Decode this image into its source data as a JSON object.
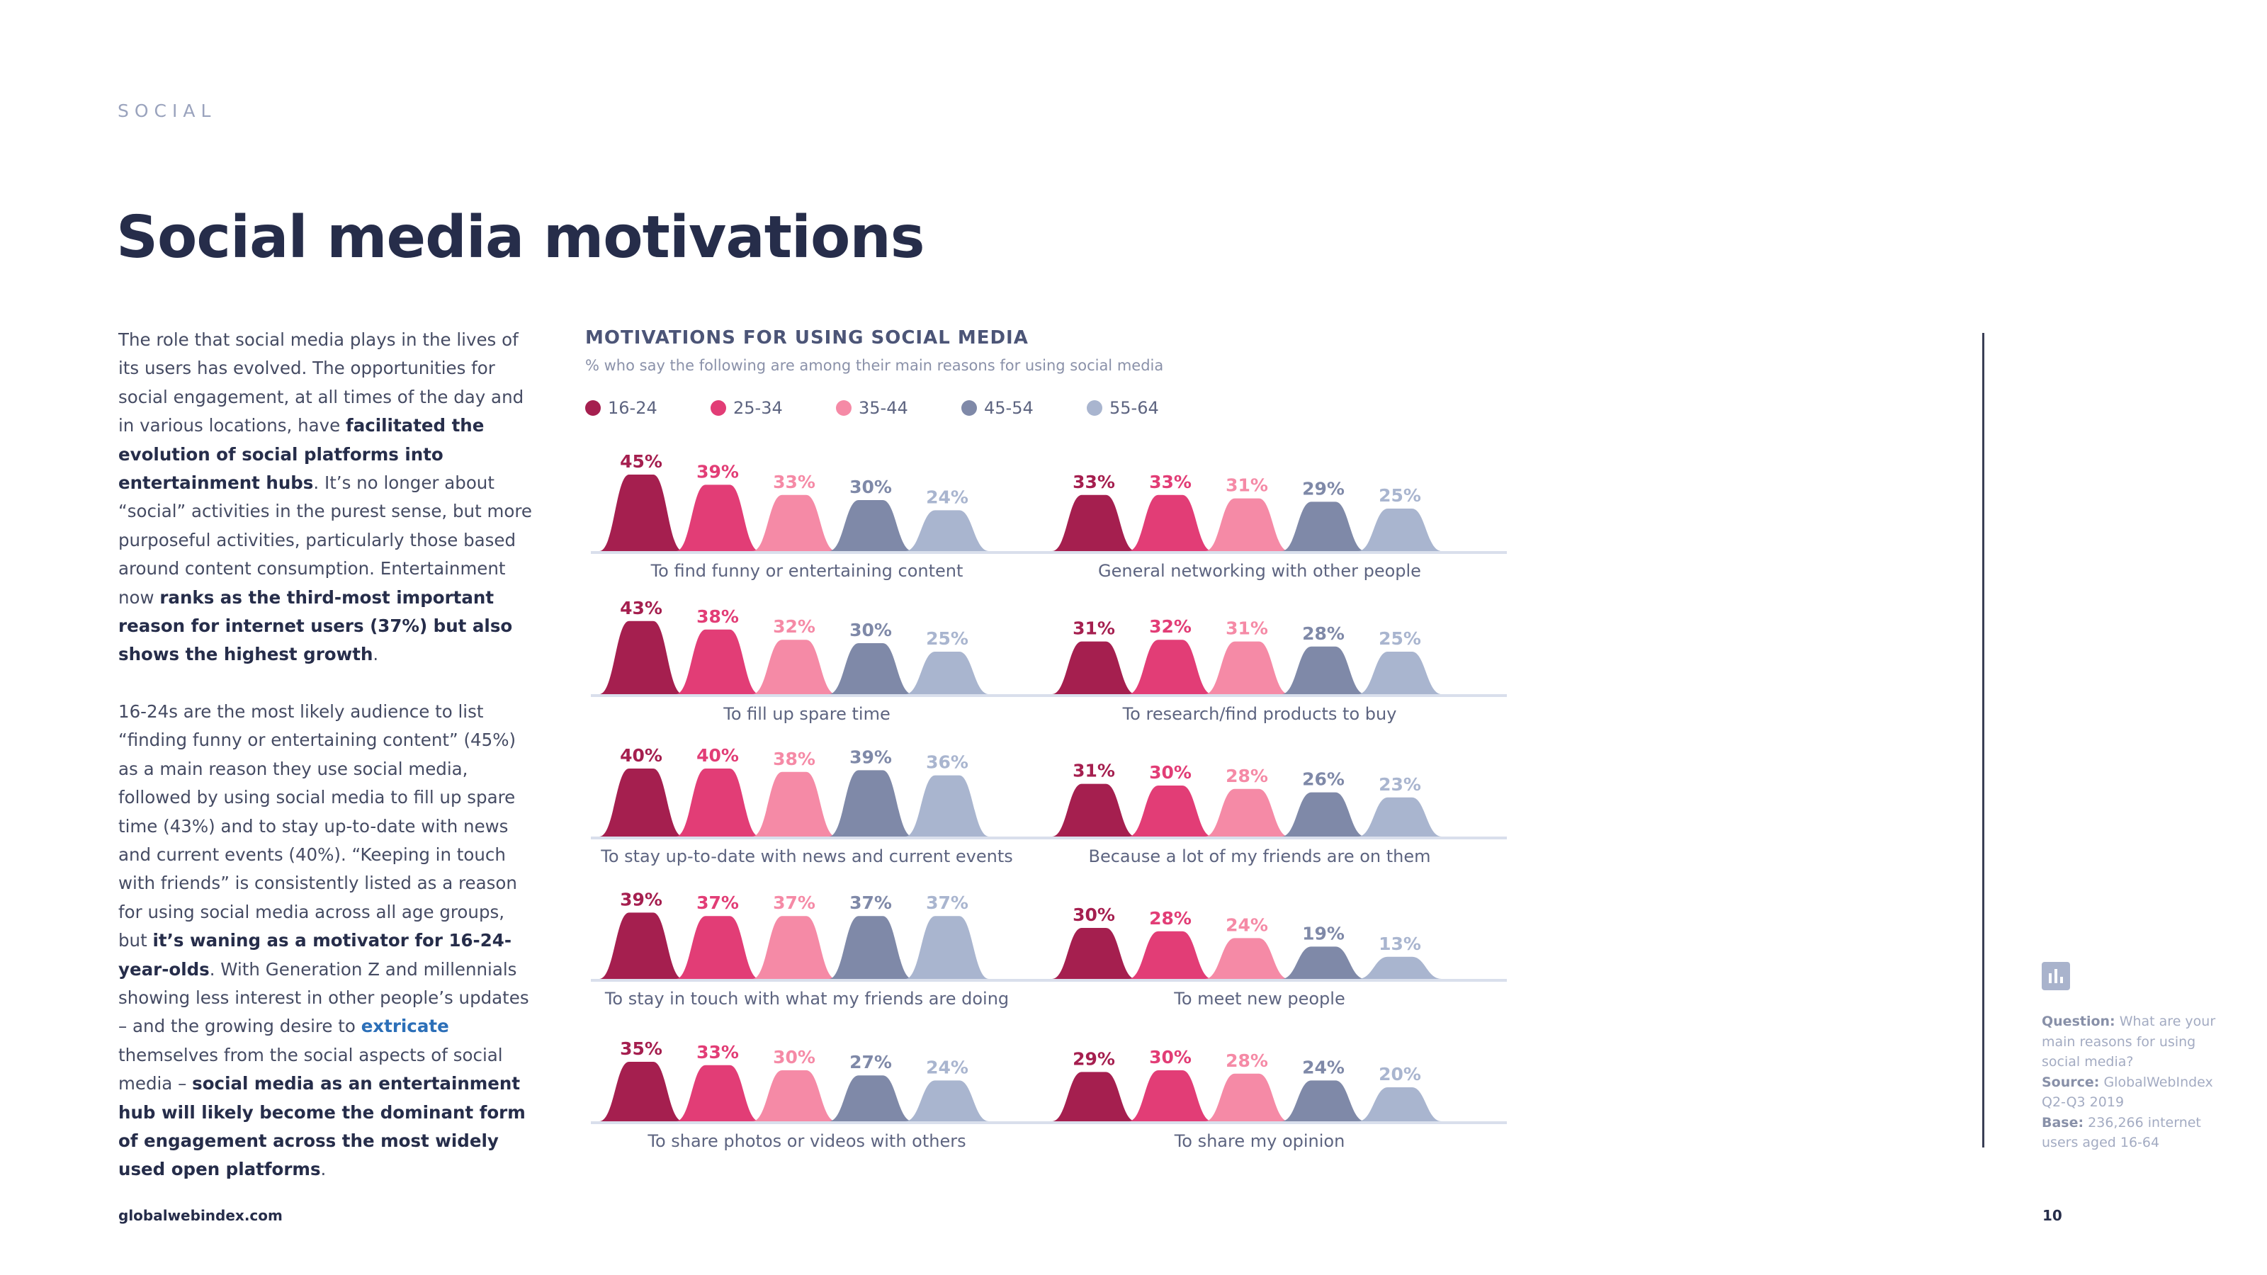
{
  "section": "SOCIAL",
  "title": "Social media motivations",
  "body": {
    "p1": [
      {
        "t": "The role that social media plays in the lives of its users has evolved. The opportunities for social engagement, at all times of the day and in various locations, have "
      },
      {
        "t": "facilitated the evolution of social platforms into entertainment hubs",
        "b": true
      },
      {
        "t": ". It’s no longer about “social” activities in the purest sense, but more purposeful activities, particularly those based around content consumption. Entertainment now "
      },
      {
        "t": "ranks as the third-most important reason for internet users (37%) but also shows the highest growth",
        "b": true
      },
      {
        "t": "."
      }
    ],
    "p2": [
      {
        "t": "16-24s are the most likely audience to list “finding funny or entertaining content” (45%) as a main reason they use social media, followed by using social media to fill up spare time (43%) and to stay up-to-date with news and current events (40%). “Keeping in touch with friends” is consistently listed as a reason for using social media across all age groups, but "
      },
      {
        "t": "it’s waning as a motivator for 16-24-year-olds",
        "b": true
      },
      {
        "t": ". With Generation Z and millennials showing less interest in other people’s updates – and the growing desire to "
      },
      {
        "t": "extricate",
        "link": true
      },
      {
        "t": " themselves from the social aspects of social media – "
      },
      {
        "t": "social media as an entertainment hub will likely become the dominant form of engagement across the most widely used open platforms",
        "b": true
      },
      {
        "t": "."
      }
    ]
  },
  "chart_data": {
    "type": "bar",
    "title": "MOTIVATIONS FOR USING SOCIAL MEDIA",
    "subtitle": "% who say the following are among their main reasons for using social media",
    "series_names": [
      "16-24",
      "25-34",
      "35-44",
      "45-54",
      "55-64"
    ],
    "colors": [
      "#a51f4f",
      "#e23d76",
      "#f58aa6",
      "#7f89a8",
      "#a9b5cf"
    ],
    "value_suffix": "%",
    "ylim": [
      0,
      45
    ],
    "legend_position": "top-left",
    "panels": [
      {
        "label": "To find funny or entertaining content",
        "values": [
          45,
          39,
          33,
          30,
          24
        ]
      },
      {
        "label": "General networking with other people",
        "values": [
          33,
          33,
          31,
          29,
          25
        ]
      },
      {
        "label": "To fill up spare time",
        "values": [
          43,
          38,
          32,
          30,
          25
        ]
      },
      {
        "label": "To research/find products to buy",
        "values": [
          31,
          32,
          31,
          28,
          25
        ]
      },
      {
        "label": "To stay up-to-date with news and current events",
        "values": [
          40,
          40,
          38,
          39,
          36
        ]
      },
      {
        "label": "Because a lot of my friends are on them",
        "values": [
          31,
          30,
          28,
          26,
          23
        ]
      },
      {
        "label": "To stay in touch with what my friends are doing",
        "values": [
          39,
          37,
          37,
          37,
          37
        ]
      },
      {
        "label": "To meet new people",
        "values": [
          30,
          28,
          24,
          19,
          13
        ]
      },
      {
        "label": "To share photos or videos with others",
        "values": [
          35,
          33,
          30,
          27,
          24
        ]
      },
      {
        "label": "To share my opinion",
        "values": [
          29,
          30,
          28,
          24,
          20
        ]
      }
    ]
  },
  "source": {
    "question_label": "Question:",
    "question": "What are your main reasons for using social media?",
    "source_label": "Source:",
    "source": "GlobalWebIndex Q2-Q3 2019",
    "base_label": "Base:",
    "base": "236,266 internet users aged 16-64"
  },
  "footer": {
    "url": "globalwebindex.com",
    "page": "10"
  },
  "icons": {
    "source_icon": "bar-chart-icon"
  }
}
